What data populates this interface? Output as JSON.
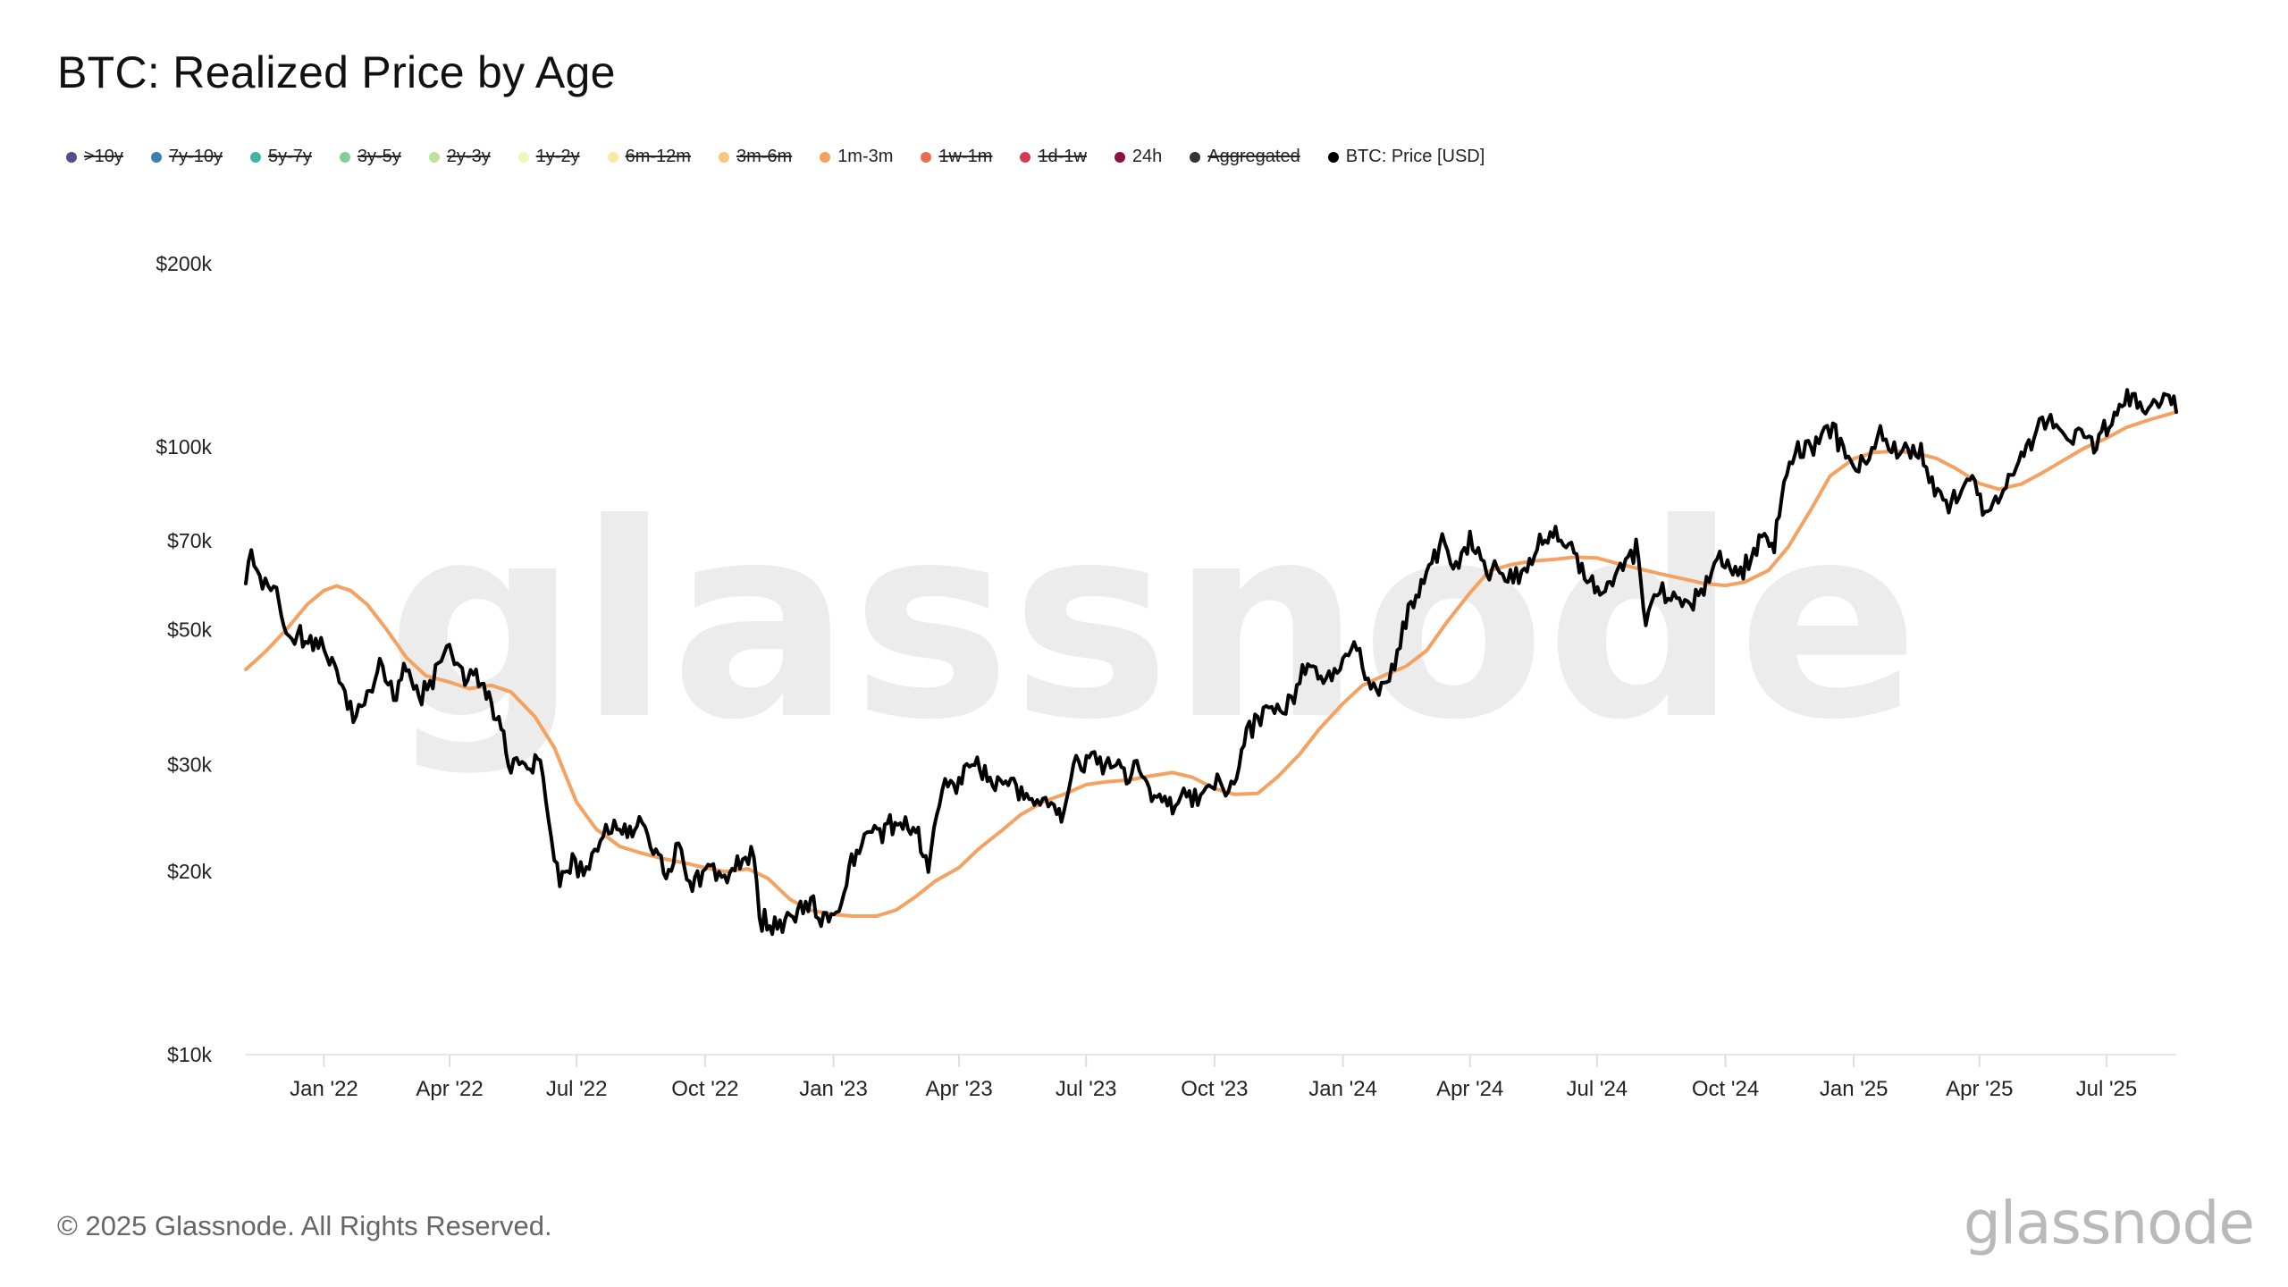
{
  "title": "BTC: Realized Price by Age",
  "legend": [
    {
      "label": ">10y",
      "color": "#5b4b8a",
      "visible": false
    },
    {
      "label": "7y-10y",
      "color": "#3a7fb0",
      "visible": false
    },
    {
      "label": "5y-7y",
      "color": "#41b4a6",
      "visible": false
    },
    {
      "label": "3y-5y",
      "color": "#84cf93",
      "visible": false
    },
    {
      "label": "2y-3y",
      "color": "#bfe39c",
      "visible": false
    },
    {
      "label": "1y-2y",
      "color": "#f2f5b8",
      "visible": false
    },
    {
      "label": "6m-12m",
      "color": "#fbe6a3",
      "visible": false
    },
    {
      "label": "3m-6m",
      "color": "#f9c87e",
      "visible": false
    },
    {
      "label": "1m-3m",
      "color": "#f5a25e",
      "visible": true
    },
    {
      "label": "1w-1m",
      "color": "#ec6d4d",
      "visible": false
    },
    {
      "label": "1d-1w",
      "color": "#d63b52",
      "visible": false
    },
    {
      "label": "24h",
      "color": "#8a1240",
      "visible": true
    },
    {
      "label": "Aggregated",
      "color": "#333333",
      "visible": false
    },
    {
      "label": "BTC: Price [USD]",
      "color": "#000000",
      "visible": true
    }
  ],
  "footer": {
    "copyright": "© 2025 Glassnode. All Rights Reserved.",
    "logo": "glassnode"
  },
  "watermark": "glassnode",
  "chart_data": {
    "type": "line",
    "title": "BTC: Realized Price by Age",
    "y_scale": "log",
    "ylim": [
      10000,
      200000
    ],
    "y_ticks": [
      {
        "value": 10000,
        "label": "$10k"
      },
      {
        "value": 20000,
        "label": "$20k"
      },
      {
        "value": 30000,
        "label": "$30k"
      },
      {
        "value": 50000,
        "label": "$50k"
      },
      {
        "value": 70000,
        "label": "$70k"
      },
      {
        "value": 100000,
        "label": "$100k"
      },
      {
        "value": 200000,
        "label": "$200k"
      }
    ],
    "xlim": [
      "2021-11-06",
      "2025-08-20"
    ],
    "x_ticks": [
      {
        "date": "2022-01-01",
        "label": "Jan '22"
      },
      {
        "date": "2022-04-01",
        "label": "Apr '22"
      },
      {
        "date": "2022-07-01",
        "label": "Jul '22"
      },
      {
        "date": "2022-10-01",
        "label": "Oct '22"
      },
      {
        "date": "2023-01-01",
        "label": "Jan '23"
      },
      {
        "date": "2023-04-01",
        "label": "Apr '23"
      },
      {
        "date": "2023-07-01",
        "label": "Jul '23"
      },
      {
        "date": "2023-10-01",
        "label": "Oct '23"
      },
      {
        "date": "2024-01-01",
        "label": "Jan '24"
      },
      {
        "date": "2024-04-01",
        "label": "Apr '24"
      },
      {
        "date": "2024-07-01",
        "label": "Jul '24"
      },
      {
        "date": "2024-10-01",
        "label": "Oct '24"
      },
      {
        "date": "2025-01-01",
        "label": "Jan '25"
      },
      {
        "date": "2025-04-01",
        "label": "Apr '25"
      },
      {
        "date": "2025-07-01",
        "label": "Jul '25"
      }
    ],
    "grid": false,
    "legend_position": "top-left",
    "series": [
      {
        "name": "1m-3m",
        "color": "#f4a261",
        "points": [
          [
            "2021-11-06",
            43000
          ],
          [
            "2021-11-20",
            46000
          ],
          [
            "2021-12-05",
            50000
          ],
          [
            "2021-12-20",
            55000
          ],
          [
            "2022-01-01",
            58000
          ],
          [
            "2022-01-10",
            59000
          ],
          [
            "2022-01-20",
            58000
          ],
          [
            "2022-02-01",
            55000
          ],
          [
            "2022-02-15",
            50000
          ],
          [
            "2022-03-01",
            45000
          ],
          [
            "2022-03-15",
            42000
          ],
          [
            "2022-04-01",
            41000
          ],
          [
            "2022-04-15",
            40000
          ],
          [
            "2022-05-01",
            40500
          ],
          [
            "2022-05-15",
            39500
          ],
          [
            "2022-06-01",
            36000
          ],
          [
            "2022-06-15",
            32000
          ],
          [
            "2022-07-01",
            26000
          ],
          [
            "2022-07-15",
            23500
          ],
          [
            "2022-08-01",
            22000
          ],
          [
            "2022-08-15",
            21500
          ],
          [
            "2022-09-01",
            21000
          ],
          [
            "2022-09-15",
            20700
          ],
          [
            "2022-10-01",
            20300
          ],
          [
            "2022-10-15",
            20000
          ],
          [
            "2022-11-01",
            20200
          ],
          [
            "2022-11-15",
            19500
          ],
          [
            "2022-12-01",
            18000
          ],
          [
            "2022-12-15",
            17300
          ],
          [
            "2023-01-01",
            17000
          ],
          [
            "2023-01-15",
            16900
          ],
          [
            "2023-02-01",
            16900
          ],
          [
            "2023-02-15",
            17300
          ],
          [
            "2023-03-01",
            18200
          ],
          [
            "2023-03-15",
            19300
          ],
          [
            "2023-04-01",
            20300
          ],
          [
            "2023-04-15",
            21800
          ],
          [
            "2023-05-01",
            23300
          ],
          [
            "2023-05-15",
            24800
          ],
          [
            "2023-06-01",
            26100
          ],
          [
            "2023-06-15",
            26800
          ],
          [
            "2023-07-01",
            27800
          ],
          [
            "2023-07-15",
            28100
          ],
          [
            "2023-08-01",
            28300
          ],
          [
            "2023-08-15",
            28700
          ],
          [
            "2023-09-01",
            29100
          ],
          [
            "2023-09-15",
            28600
          ],
          [
            "2023-10-01",
            27400
          ],
          [
            "2023-10-15",
            26800
          ],
          [
            "2023-11-01",
            26900
          ],
          [
            "2023-11-15",
            28600
          ],
          [
            "2023-12-01",
            31200
          ],
          [
            "2023-12-15",
            34300
          ],
          [
            "2024-01-01",
            37800
          ],
          [
            "2024-01-15",
            40500
          ],
          [
            "2024-02-01",
            42200
          ],
          [
            "2024-02-15",
            43500
          ],
          [
            "2024-03-01",
            46200
          ],
          [
            "2024-03-15",
            51300
          ],
          [
            "2024-04-01",
            57500
          ],
          [
            "2024-04-15",
            62500
          ],
          [
            "2024-05-01",
            64000
          ],
          [
            "2024-05-15",
            64800
          ],
          [
            "2024-06-01",
            65300
          ],
          [
            "2024-06-15",
            65800
          ],
          [
            "2024-07-01",
            65600
          ],
          [
            "2024-07-15",
            64300
          ],
          [
            "2024-08-01",
            62900
          ],
          [
            "2024-08-15",
            61800
          ],
          [
            "2024-09-01",
            60600
          ],
          [
            "2024-09-15",
            59600
          ],
          [
            "2024-10-01",
            59100
          ],
          [
            "2024-10-15",
            59900
          ],
          [
            "2024-11-01",
            62600
          ],
          [
            "2024-11-15",
            68400
          ],
          [
            "2024-12-01",
            78600
          ],
          [
            "2024-12-15",
            89500
          ],
          [
            "2025-01-01",
            95600
          ],
          [
            "2025-01-15",
            97800
          ],
          [
            "2025-02-01",
            98300
          ],
          [
            "2025-02-15",
            97500
          ],
          [
            "2025-03-01",
            95700
          ],
          [
            "2025-03-15",
            92100
          ],
          [
            "2025-04-01",
            87000
          ],
          [
            "2025-04-15",
            85100
          ],
          [
            "2025-05-01",
            86800
          ],
          [
            "2025-05-15",
            90300
          ],
          [
            "2025-06-01",
            95200
          ],
          [
            "2025-06-15",
            99400
          ],
          [
            "2025-07-01",
            103300
          ],
          [
            "2025-07-15",
            107500
          ],
          [
            "2025-08-01",
            110800
          ],
          [
            "2025-08-20",
            114000
          ]
        ]
      },
      {
        "name": "BTC: Price [USD]",
        "color": "#000000",
        "points": [
          [
            "2021-11-06",
            61500
          ],
          [
            "2021-11-10",
            66000
          ],
          [
            "2021-11-20",
            58500
          ],
          [
            "2021-11-28",
            57000
          ],
          [
            "2021-12-05",
            49500
          ],
          [
            "2021-12-15",
            48500
          ],
          [
            "2021-12-28",
            47500
          ],
          [
            "2022-01-05",
            43500
          ],
          [
            "2022-01-12",
            42500
          ],
          [
            "2022-01-22",
            36000
          ],
          [
            "2022-02-01",
            38500
          ],
          [
            "2022-02-10",
            44000
          ],
          [
            "2022-02-20",
            38500
          ],
          [
            "2022-03-01",
            43500
          ],
          [
            "2022-03-10",
            39000
          ],
          [
            "2022-03-20",
            41000
          ],
          [
            "2022-03-30",
            47000
          ],
          [
            "2022-04-10",
            42000
          ],
          [
            "2022-04-20",
            41500
          ],
          [
            "2022-05-01",
            38500
          ],
          [
            "2022-05-08",
            34000
          ],
          [
            "2022-05-15",
            30000
          ],
          [
            "2022-05-25",
            29500
          ],
          [
            "2022-06-05",
            31000
          ],
          [
            "2022-06-13",
            22500
          ],
          [
            "2022-06-19",
            19500
          ],
          [
            "2022-06-28",
            20500
          ],
          [
            "2022-07-10",
            20500
          ],
          [
            "2022-07-20",
            23000
          ],
          [
            "2022-07-30",
            23600
          ],
          [
            "2022-08-10",
            23200
          ],
          [
            "2022-08-15",
            24300
          ],
          [
            "2022-08-25",
            21500
          ],
          [
            "2022-09-05",
            19700
          ],
          [
            "2022-09-12",
            22100
          ],
          [
            "2022-09-20",
            19000
          ],
          [
            "2022-10-05",
            20100
          ],
          [
            "2022-10-15",
            19200
          ],
          [
            "2022-10-26",
            20700
          ],
          [
            "2022-11-05",
            21200
          ],
          [
            "2022-11-09",
            16800
          ],
          [
            "2022-11-20",
            16300
          ],
          [
            "2022-12-01",
            17000
          ],
          [
            "2022-12-14",
            17800
          ],
          [
            "2022-12-25",
            16800
          ],
          [
            "2023-01-05",
            16900
          ],
          [
            "2023-01-14",
            20900
          ],
          [
            "2023-01-25",
            23000
          ],
          [
            "2023-02-05",
            23000
          ],
          [
            "2023-02-16",
            24500
          ],
          [
            "2023-03-01",
            23500
          ],
          [
            "2023-03-10",
            20200
          ],
          [
            "2023-03-18",
            27000
          ],
          [
            "2023-04-01",
            28400
          ],
          [
            "2023-04-14",
            30400
          ],
          [
            "2023-04-25",
            28000
          ],
          [
            "2023-05-10",
            27600
          ],
          [
            "2023-05-25",
            26300
          ],
          [
            "2023-06-10",
            25800
          ],
          [
            "2023-06-15",
            25000
          ],
          [
            "2023-06-22",
            30000
          ],
          [
            "2023-07-05",
            30500
          ],
          [
            "2023-07-15",
            30300
          ],
          [
            "2023-07-30",
            29300
          ],
          [
            "2023-08-10",
            29400
          ],
          [
            "2023-08-17",
            26300
          ],
          [
            "2023-09-01",
            25900
          ],
          [
            "2023-09-15",
            26500
          ],
          [
            "2023-10-01",
            27900
          ],
          [
            "2023-10-15",
            27100
          ],
          [
            "2023-10-24",
            34000
          ],
          [
            "2023-11-09",
            36700
          ],
          [
            "2023-11-25",
            37700
          ],
          [
            "2023-12-05",
            44000
          ],
          [
            "2023-12-18",
            41300
          ],
          [
            "2024-01-01",
            44200
          ],
          [
            "2024-01-11",
            46500
          ],
          [
            "2024-01-23",
            39500
          ],
          [
            "2024-02-05",
            42500
          ],
          [
            "2024-02-15",
            51800
          ],
          [
            "2024-02-28",
            60500
          ],
          [
            "2024-03-14",
            72000
          ],
          [
            "2024-03-20",
            62500
          ],
          [
            "2024-04-01",
            70500
          ],
          [
            "2024-04-13",
            63500
          ],
          [
            "2024-04-30",
            60000
          ],
          [
            "2024-05-10",
            61500
          ],
          [
            "2024-05-21",
            70500
          ],
          [
            "2024-06-07",
            71500
          ],
          [
            "2024-06-24",
            60500
          ],
          [
            "2024-07-05",
            56800
          ],
          [
            "2024-07-14",
            60800
          ],
          [
            "2024-07-29",
            68500
          ],
          [
            "2024-08-05",
            52000
          ],
          [
            "2024-08-15",
            58500
          ],
          [
            "2024-09-06",
            53500
          ],
          [
            "2024-09-27",
            65800
          ],
          [
            "2024-10-10",
            60500
          ],
          [
            "2024-10-29",
            72500
          ],
          [
            "2024-11-05",
            68500
          ],
          [
            "2024-11-12",
            89000
          ],
          [
            "2024-11-22",
            98500
          ],
          [
            "2024-12-05",
            101000
          ],
          [
            "2024-12-17",
            106500
          ],
          [
            "2024-12-30",
            92500
          ],
          [
            "2025-01-10",
            94500
          ],
          [
            "2025-01-20",
            106500
          ],
          [
            "2025-02-05",
            97800
          ],
          [
            "2025-02-20",
            96800
          ],
          [
            "2025-02-28",
            84500
          ],
          [
            "2025-03-10",
            79500
          ],
          [
            "2025-03-25",
            87500
          ],
          [
            "2025-04-07",
            76500
          ],
          [
            "2025-04-20",
            87500
          ],
          [
            "2025-05-01",
            96500
          ],
          [
            "2025-05-10",
            104000
          ],
          [
            "2025-05-22",
            111000
          ],
          [
            "2025-06-05",
            101500
          ],
          [
            "2025-06-15",
            105500
          ],
          [
            "2025-06-22",
            100500
          ],
          [
            "2025-07-03",
            109500
          ],
          [
            "2025-07-14",
            121000
          ],
          [
            "2025-07-25",
            118000
          ],
          [
            "2025-08-02",
            113000
          ],
          [
            "2025-08-13",
            123000
          ],
          [
            "2025-08-20",
            114000
          ]
        ]
      }
    ]
  }
}
